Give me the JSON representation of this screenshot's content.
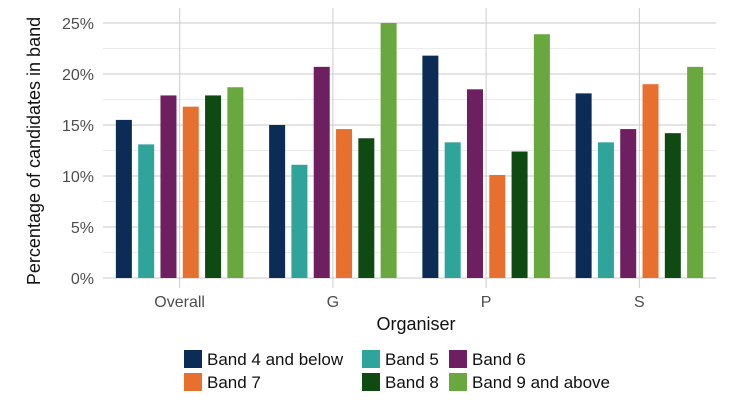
{
  "chart_data": {
    "type": "bar",
    "title": "",
    "xlabel": "Organiser",
    "ylabel": "Percentage of candidates in band",
    "categories": [
      "Overall",
      "G",
      "P",
      "S"
    ],
    "ylim": [
      0,
      25
    ],
    "yticks": [
      0,
      5,
      10,
      15,
      20,
      25
    ],
    "ytick_labels": [
      "0%",
      "5%",
      "10%",
      "15%",
      "20%",
      "25%"
    ],
    "grid": true,
    "legend_position": "bottom",
    "series": [
      {
        "name": "Band 4 and below",
        "color": "#0b2d55",
        "values": [
          15.5,
          15.0,
          21.8,
          18.1
        ]
      },
      {
        "name": "Band 5",
        "color": "#2ea49a",
        "values": [
          13.1,
          11.1,
          13.3,
          13.3
        ]
      },
      {
        "name": "Band 6",
        "color": "#6e1f5f",
        "values": [
          17.9,
          20.7,
          18.5,
          14.6
        ]
      },
      {
        "name": "Band 7",
        "color": "#e8702e",
        "values": [
          16.8,
          14.6,
          10.1,
          19.0
        ]
      },
      {
        "name": "Band 8",
        "color": "#0f4a12",
        "values": [
          17.9,
          13.7,
          12.4,
          14.2
        ]
      },
      {
        "name": "Band 9 and above",
        "color": "#69a83f",
        "values": [
          18.7,
          25.0,
          23.9,
          20.7
        ]
      }
    ]
  }
}
